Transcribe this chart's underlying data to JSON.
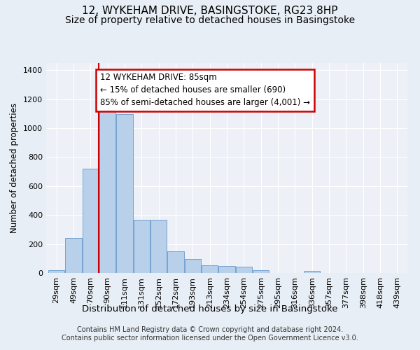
{
  "title": "12, WYKEHAM DRIVE, BASINGSTOKE, RG23 8HP",
  "subtitle": "Size of property relative to detached houses in Basingstoke",
  "xlabel": "Distribution of detached houses by size in Basingstoke",
  "ylabel": "Number of detached properties",
  "categories": [
    "29sqm",
    "49sqm",
    "70sqm",
    "90sqm",
    "111sqm",
    "131sqm",
    "152sqm",
    "172sqm",
    "193sqm",
    "213sqm",
    "234sqm",
    "254sqm",
    "275sqm",
    "295sqm",
    "316sqm",
    "336sqm",
    "357sqm",
    "377sqm",
    "398sqm",
    "418sqm",
    "439sqm"
  ],
  "bar_values": [
    20,
    240,
    720,
    1120,
    1095,
    365,
    365,
    150,
    95,
    55,
    50,
    45,
    20,
    0,
    0,
    13,
    0,
    0,
    0,
    0,
    0
  ],
  "bar_color": "#b8d0ea",
  "bar_edge_color": "#6699cc",
  "vline_color": "#cc0000",
  "vline_x_idx": 2.47,
  "annotation_text": "12 WYKEHAM DRIVE: 85sqm\n← 15% of detached houses are smaller (690)\n85% of semi-detached houses are larger (4,001) →",
  "annotation_box_color": "white",
  "annotation_box_edge_color": "#cc0000",
  "ylim": [
    0,
    1450
  ],
  "yticks": [
    0,
    200,
    400,
    600,
    800,
    1000,
    1200,
    1400
  ],
  "footnote": "Contains HM Land Registry data © Crown copyright and database right 2024.\nContains public sector information licensed under the Open Government Licence v3.0.",
  "bg_color": "#e8eef5",
  "plot_bg_color": "#edf1f7",
  "title_fontsize": 11,
  "subtitle_fontsize": 10,
  "xlabel_fontsize": 9.5,
  "ylabel_fontsize": 8.5,
  "tick_fontsize": 8,
  "annotation_fontsize": 8.5,
  "footnote_fontsize": 7
}
